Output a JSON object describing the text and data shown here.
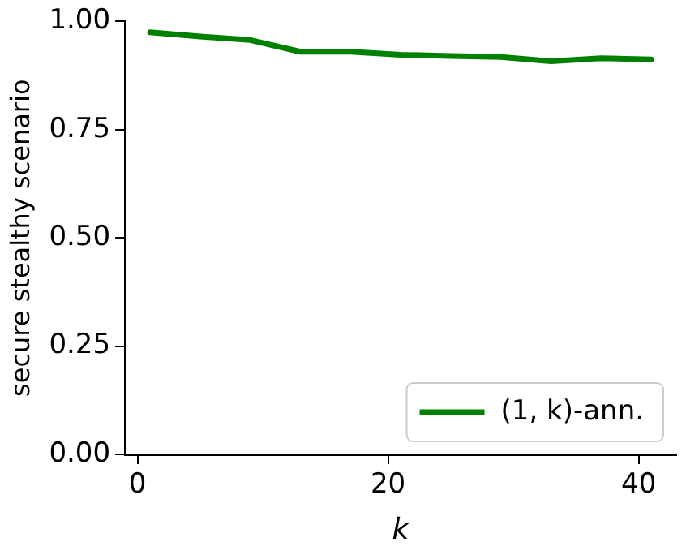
{
  "chart_data": {
    "type": "line",
    "xlabel": "k",
    "ylabel": "secure stealthy scenario",
    "x": [
      1,
      5,
      9,
      13,
      17,
      21,
      25,
      29,
      33,
      37,
      41
    ],
    "series": [
      {
        "name": "(1, k)-ann.",
        "color": "#008000",
        "values": [
          0.975,
          0.965,
          0.957,
          0.93,
          0.93,
          0.923,
          0.92,
          0.918,
          0.908,
          0.915,
          0.912
        ]
      }
    ],
    "xlim": [
      -1,
      43
    ],
    "xticks": [
      0,
      20,
      40
    ],
    "ylim": [
      0,
      1
    ],
    "yticks": [
      {
        "value": 0,
        "label": "0.00"
      },
      {
        "value": 0.25,
        "label": "0.25"
      },
      {
        "value": 0.5,
        "label": "0.50"
      },
      {
        "value": 0.75,
        "label": "0.75"
      },
      {
        "value": 1,
        "label": "1.00"
      }
    ],
    "grid": false,
    "legend": "bottom right",
    "marker": "none",
    "line_style": "solid"
  }
}
